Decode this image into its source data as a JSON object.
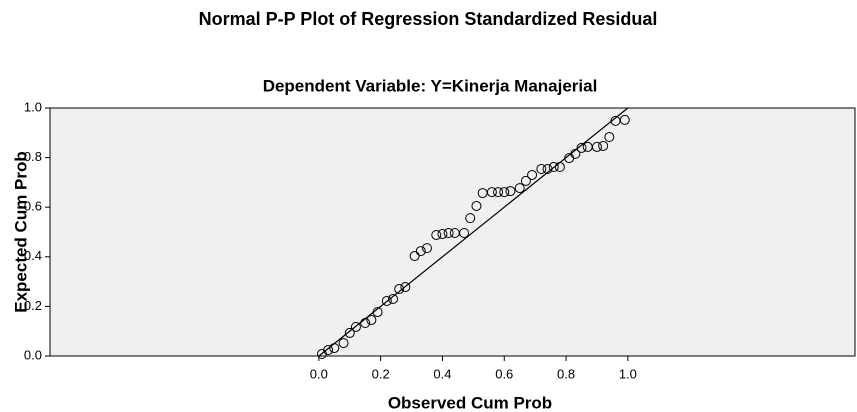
{
  "chart_data": {
    "type": "scatter",
    "title": "Normal P-P Plot of Regression Standardized Residual",
    "subtitle": "Dependent Variable: Y=Kinerja Manajerial",
    "x_label": "Observed Cum Prob",
    "y_label": "Expected Cum Prob",
    "x": [
      0.01,
      0.03,
      0.05,
      0.08,
      0.1,
      0.12,
      0.15,
      0.17,
      0.19,
      0.22,
      0.24,
      0.26,
      0.28,
      0.31,
      0.33,
      0.35,
      0.38,
      0.4,
      0.42,
      0.44,
      0.47,
      0.49,
      0.51,
      0.53,
      0.56,
      0.58,
      0.6,
      0.62,
      0.65,
      0.67,
      0.69,
      0.72,
      0.74,
      0.76,
      0.78,
      0.81,
      0.83,
      0.85,
      0.87,
      0.9,
      0.92,
      0.94,
      0.96,
      0.99
    ],
    "values": [
      0.008,
      0.024,
      0.032,
      0.052,
      0.093,
      0.117,
      0.133,
      0.145,
      0.177,
      0.222,
      0.23,
      0.27,
      0.278,
      0.403,
      0.423,
      0.435,
      0.488,
      0.492,
      0.496,
      0.496,
      0.496,
      0.556,
      0.605,
      0.657,
      0.661,
      0.661,
      0.661,
      0.665,
      0.677,
      0.706,
      0.73,
      0.754,
      0.754,
      0.762,
      0.762,
      0.798,
      0.815,
      0.839,
      0.843,
      0.843,
      0.847,
      0.883,
      0.948,
      0.952
    ],
    "xlim": [
      -0.87,
      1.735
    ],
    "ylim": [
      0,
      1
    ],
    "xticks": [
      {
        "value": 0,
        "label": "0.0"
      },
      0.2,
      0.4,
      0.6,
      0.8,
      {
        "value": 1,
        "label": "1.0"
      }
    ],
    "yticks": [
      {
        "value": 0,
        "label": "0.0"
      },
      0.2,
      0.4,
      0.6,
      0.8,
      {
        "value": 1,
        "label": "1.0"
      }
    ],
    "background": "#f0f0f0",
    "color": "#000000"
  }
}
